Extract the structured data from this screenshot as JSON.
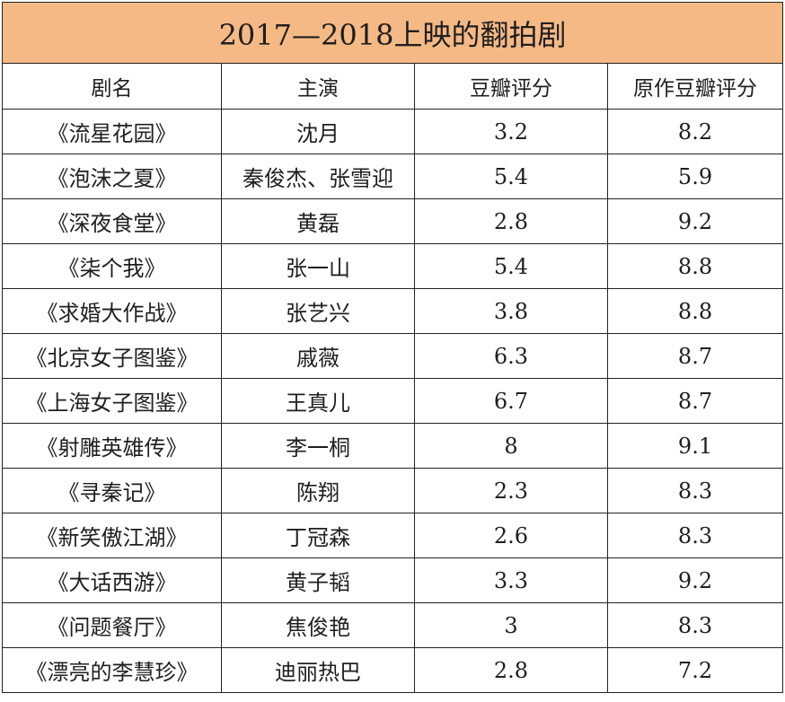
{
  "title": "2017—2018上映的翻拍剧",
  "headers": [
    "剧名",
    "主演",
    "豆瓣评分",
    "原作豆瓣评分"
  ],
  "rows": [
    {
      "name": "《流星花园》",
      "actor": "沈月",
      "score": "3.2",
      "orig": "8.2"
    },
    {
      "name": "《泡沫之夏》",
      "actor": "秦俊杰、张雪迎",
      "score": "5.4",
      "orig": "5.9"
    },
    {
      "name": "《深夜食堂》",
      "actor": "黄磊",
      "score": "2.8",
      "orig": "9.2"
    },
    {
      "name": "《柒个我》",
      "actor": "张一山",
      "score": "5.4",
      "orig": "8.8"
    },
    {
      "name": "《求婚大作战》",
      "actor": "张艺兴",
      "score": "3.8",
      "orig": "8.8"
    },
    {
      "name": "《北京女子图鉴》",
      "actor": "戚薇",
      "score": "6.3",
      "orig": "8.7"
    },
    {
      "name": "《上海女子图鉴》",
      "actor": "王真儿",
      "score": "6.7",
      "orig": "8.7"
    },
    {
      "name": "《射雕英雄传》",
      "actor": "李一桐",
      "score": "8",
      "orig": "9.1"
    },
    {
      "name": "《寻秦记》",
      "actor": "陈翔",
      "score": "2.3",
      "orig": "8.3"
    },
    {
      "name": "《新笑傲江湖》",
      "actor": "丁冠森",
      "score": "2.6",
      "orig": "8.3"
    },
    {
      "name": "《大话西游》",
      "actor": "黄子韬",
      "score": "3.3",
      "orig": "9.2"
    },
    {
      "name": "《问题餐厅》",
      "actor": "焦俊艳",
      "score": "3",
      "orig": "8.3"
    },
    {
      "name": "《漂亮的李慧珍》",
      "actor": "迪丽热巴",
      "score": "2.8",
      "orig": "7.2"
    }
  ]
}
